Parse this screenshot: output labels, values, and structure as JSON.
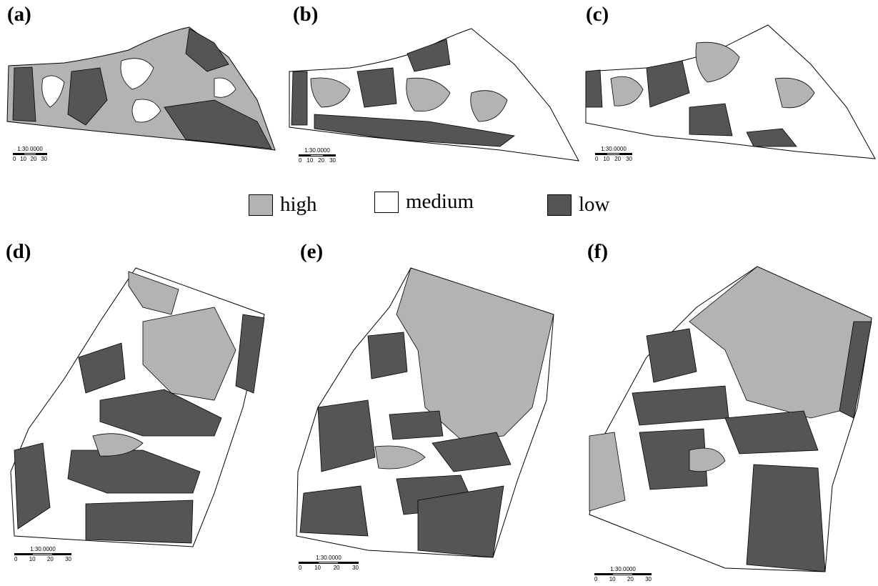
{
  "panels": [
    {
      "label": "(a)",
      "scale_ratio": "1:30.0000",
      "scale_ticks": [
        "0",
        "10",
        "20",
        "30"
      ]
    },
    {
      "label": "(b)",
      "scale_ratio": "1:30.0000",
      "scale_ticks": [
        "0",
        "10",
        "20",
        "30"
      ]
    },
    {
      "label": "(c)",
      "scale_ratio": "1:30.0000",
      "scale_ticks": [
        "0",
        "10",
        "20",
        "30"
      ]
    },
    {
      "label": "(d)",
      "scale_ratio": "1:30.0000",
      "scale_ticks": [
        "0",
        "10",
        "20",
        "30"
      ]
    },
    {
      "label": "(e)",
      "scale_ratio": "1:30.0000",
      "scale_ticks": [
        "0",
        "10",
        "20",
        "30"
      ]
    },
    {
      "label": "(f)",
      "scale_ratio": "1:30.0000",
      "scale_ticks": [
        "0",
        "10",
        "20",
        "30"
      ]
    }
  ],
  "legend": [
    {
      "label": "high",
      "color": "#b3b3b3"
    },
    {
      "label": "medium",
      "color": "#ffffff"
    },
    {
      "label": "low",
      "color": "#555555"
    }
  ],
  "colors": {
    "high": "#b3b3b3",
    "medium": "#ffffff",
    "low": "#555555",
    "outline": "#000000"
  }
}
